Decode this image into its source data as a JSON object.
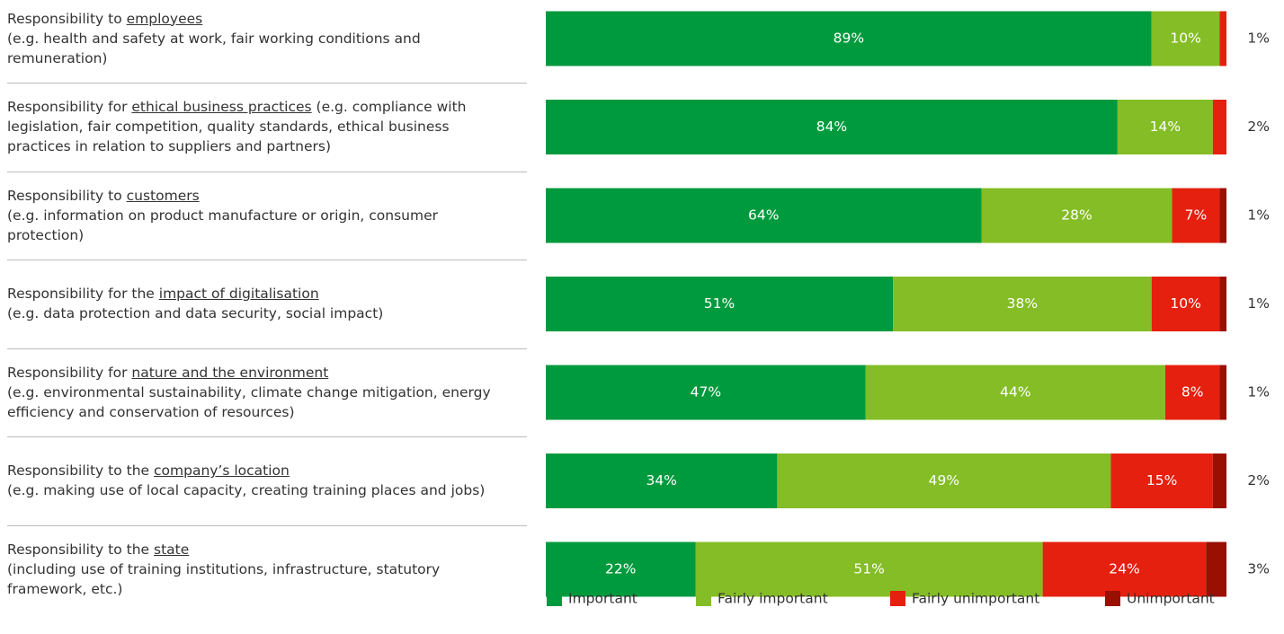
{
  "chart_data": {
    "type": "stacked-bar-horizontal",
    "categories": [
      {
        "lead": "Responsibility to ",
        "topic": "employees",
        "rest": "\n(e.g. health and safety at work, fair working conditions and remuneration)"
      },
      {
        "lead": "Responsibility for ",
        "topic": "ethical business practices",
        "rest": " (e.g. compliance with legislation, fair competition, quality standards, ethical business practices in relation to suppliers and partners)"
      },
      {
        "lead": "Responsibility to ",
        "topic": "customers",
        "rest": "\n(e.g. information on product manufacture or origin, consumer protection)"
      },
      {
        "lead": "Responsibility for the ",
        "topic": "impact of digitalisation",
        "rest": "\n(e.g. data protection and data security, social impact)"
      },
      {
        "lead": "Responsibility for ",
        "topic": "nature and the environment",
        "rest": "\n(e.g. environmental sustainability, climate change mitigation, energy efficiency and conservation of resources)"
      },
      {
        "lead": "Responsibility to the ",
        "topic": "company’s location",
        "rest": "\n(e.g. making use of local capacity, creating training places and jobs)"
      },
      {
        "lead": "Responsibility to the ",
        "topic": "state",
        "rest": "\n(including use of training institutions, infrastructure, statutory framework, etc.)"
      }
    ],
    "series": [
      {
        "name": "Important",
        "color": "#009a3e",
        "values": [
          89,
          84,
          64,
          51,
          47,
          34,
          22
        ],
        "value_labels": [
          "89%",
          "84%",
          "64%",
          "51%",
          "47%",
          "34%",
          "22%"
        ]
      },
      {
        "name": "Fairly important",
        "color": "#84bd25",
        "values": [
          10,
          14,
          28,
          38,
          44,
          49,
          51
        ],
        "value_labels": [
          "10%",
          "14%",
          "28%",
          "38%",
          "44%",
          "49%",
          "51%"
        ]
      },
      {
        "name": "Fairly unimportant",
        "color": "#e5200f",
        "values": [
          1,
          2,
          7,
          10,
          8,
          15,
          24
        ],
        "value_labels": [
          "1%",
          "2%",
          "7%",
          "10%",
          "8%",
          "15%",
          "24%"
        ]
      },
      {
        "name": "Unimportant",
        "color": "#990f02",
        "values": [
          null,
          null,
          1,
          1,
          1,
          2,
          3
        ],
        "value_labels": [
          null,
          null,
          "1%",
          "1%",
          "1%",
          "2%",
          "3%"
        ]
      }
    ],
    "xlim": [
      0,
      100
    ]
  }
}
